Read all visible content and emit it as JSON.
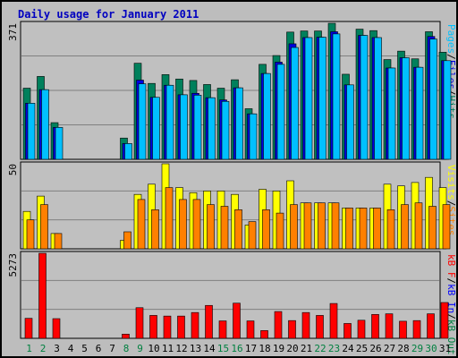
{
  "title": "Daily usage for January 2011",
  "colors": {
    "background": "#bdbdbd",
    "plot": "#c0c0c0",
    "hits": "#00805c",
    "files": "#0000e0",
    "pages": "#00c0ff",
    "visits": "#ffff00",
    "sites": "#ff8000",
    "kbytes": "#ff0000",
    "kb_in": "#0000ff",
    "kb_out": "#008040",
    "weekend_label": "#008040",
    "weekday_label": "#000000",
    "title": "#0000c0"
  },
  "chart_data": [
    {
      "type": "bar",
      "panel": "top",
      "ymax_label": "371",
      "ylim": [
        0,
        371
      ],
      "legend": [
        {
          "text": "Pages",
          "color": "#00c0ff"
        },
        {
          "text": "/",
          "color": "#000000"
        },
        {
          "text": "Files",
          "color": "#0000e0"
        },
        {
          "text": "/",
          "color": "#000000"
        },
        {
          "text": "Hits",
          "color": "#00805c"
        }
      ],
      "series": [
        {
          "name": "Hits",
          "values": [
            194,
            226,
            100,
            0,
            0,
            0,
            0,
            58,
            262,
            207,
            231,
            219,
            215,
            204,
            194,
            217,
            138,
            259,
            283,
            347,
            350,
            350,
            371,
            232,
            355,
            351,
            272,
            295,
            274,
            348,
            292
          ]
        },
        {
          "name": "Files",
          "values": [
            153,
            190,
            87,
            0,
            0,
            0,
            0,
            43,
            216,
            169,
            202,
            176,
            180,
            168,
            162,
            195,
            124,
            234,
            265,
            315,
            332,
            333,
            348,
            203,
            338,
            332,
            249,
            277,
            251,
            335,
            269
          ]
        },
        {
          "name": "Pages",
          "values": [
            153,
            190,
            87,
            0,
            0,
            0,
            0,
            43,
            206,
            169,
            202,
            176,
            175,
            168,
            158,
            195,
            124,
            234,
            259,
            305,
            332,
            333,
            342,
            203,
            338,
            332,
            249,
            277,
            251,
            328,
            269
          ]
        }
      ],
      "categories": [
        "1",
        "2",
        "3",
        "4",
        "5",
        "6",
        "7",
        "8",
        "9",
        "10",
        "11",
        "12",
        "13",
        "14",
        "15",
        "16",
        "17",
        "18",
        "19",
        "20",
        "21",
        "22",
        "23",
        "24",
        "25",
        "26",
        "27",
        "28",
        "29",
        "30",
        "31"
      ]
    },
    {
      "type": "bar",
      "panel": "middle",
      "ymax_label": "50",
      "ylim": [
        0,
        50
      ],
      "legend": [
        {
          "text": "Visits",
          "color": "#ffff00"
        },
        {
          "text": "/",
          "color": "#000000"
        },
        {
          "text": "Sites",
          "color": "#ff8000"
        }
      ],
      "series": [
        {
          "name": "Visits",
          "values": [
            22,
            31,
            9,
            0,
            0,
            0,
            0,
            5,
            32,
            38,
            50,
            36,
            33,
            34,
            34,
            32,
            14,
            35,
            34,
            40,
            27,
            27,
            27,
            24,
            24,
            24,
            38,
            37,
            39,
            42,
            36
          ]
        },
        {
          "name": "Sites",
          "values": [
            17,
            26,
            9,
            0,
            0,
            0,
            0,
            10,
            29,
            23,
            36,
            29,
            29,
            26,
            25,
            23,
            16,
            23,
            21,
            26,
            27,
            27,
            27,
            24,
            24,
            24,
            23,
            26,
            27,
            25,
            26
          ]
        }
      ],
      "categories": [
        "1",
        "2",
        "3",
        "4",
        "5",
        "6",
        "7",
        "8",
        "9",
        "10",
        "11",
        "12",
        "13",
        "14",
        "15",
        "16",
        "17",
        "18",
        "19",
        "20",
        "21",
        "22",
        "23",
        "24",
        "25",
        "26",
        "27",
        "28",
        "29",
        "30",
        "31"
      ]
    },
    {
      "type": "bar",
      "panel": "bottom",
      "ymax_label": "5273",
      "ylim": [
        0,
        5273
      ],
      "legend": [
        {
          "text": "kB F",
          "color": "#ff0000"
        },
        {
          "text": "/",
          "color": "#000000"
        },
        {
          "text": "kB In",
          "color": "#0000ff"
        },
        {
          "text": "/",
          "color": "#000000"
        },
        {
          "text": "kB Out",
          "color": "#008040"
        }
      ],
      "series": [
        {
          "name": "kB F",
          "values": [
            1240,
            5273,
            1220,
            0,
            0,
            0,
            0,
            260,
            1900,
            1420,
            1380,
            1380,
            1600,
            2040,
            1080,
            2180,
            1080,
            480,
            1660,
            1100,
            1600,
            1420,
            2160,
            920,
            1120,
            1480,
            1520,
            1060,
            1100,
            1520,
            2220
          ]
        }
      ],
      "categories": [
        "1",
        "2",
        "3",
        "4",
        "5",
        "6",
        "7",
        "8",
        "9",
        "10",
        "11",
        "12",
        "13",
        "14",
        "15",
        "16",
        "17",
        "18",
        "19",
        "20",
        "21",
        "22",
        "23",
        "24",
        "25",
        "26",
        "27",
        "28",
        "29",
        "30",
        "31"
      ]
    }
  ],
  "weekend_days": [
    "1",
    "2",
    "8",
    "9",
    "15",
    "16",
    "22",
    "23",
    "29",
    "30"
  ]
}
